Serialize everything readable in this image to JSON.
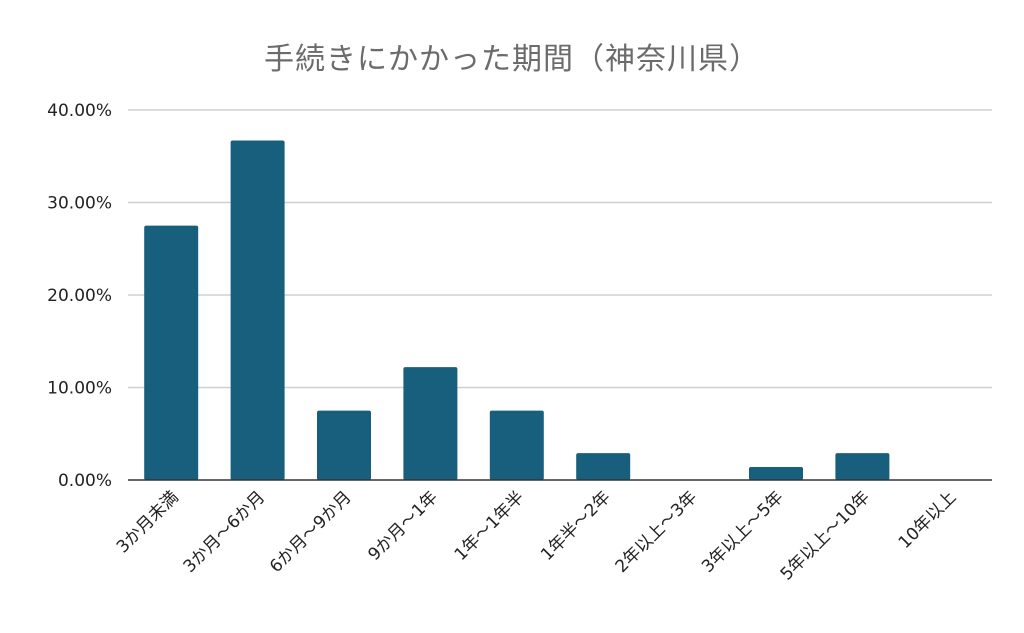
{
  "chart_data": {
    "type": "bar",
    "title": "手続きにかかった期間（神奈川県）",
    "xlabel": "",
    "ylabel": "",
    "categories": [
      "3か月未満",
      "3か月～6か月",
      "6か月～9か月",
      "9か月～1年",
      "1年～1年半",
      "1年半～2年",
      "2年以上～3年",
      "3年以上～5年",
      "5年以上～10年",
      "10年以上"
    ],
    "values": [
      27.5,
      36.7,
      7.5,
      12.2,
      7.5,
      2.9,
      0,
      1.4,
      2.9,
      0
    ],
    "y_ticks": [
      "0.00%",
      "10.00%",
      "20.00%",
      "30.00%",
      "40.00%"
    ],
    "ylim": [
      0,
      40
    ],
    "grid": true,
    "legend": "none",
    "colors": {
      "bar": "#175f7d",
      "grid": "#d0d0d0",
      "axis": "#333333",
      "title": "#6b6b6b"
    }
  }
}
